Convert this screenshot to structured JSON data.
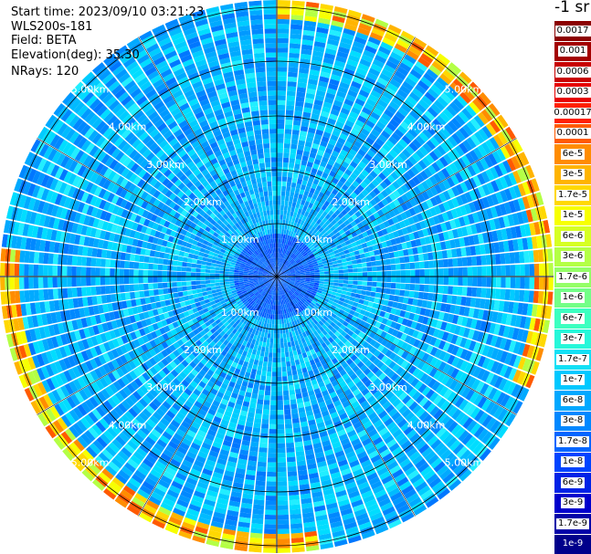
{
  "header": {
    "start_time": "Start time: 2023/09/10 03:21:23",
    "instrument": "WLS200s-181",
    "field": "Field: BETA",
    "elevation": "Elevation(deg): 35.30",
    "nrays": "NRays: 120"
  },
  "colorbar": {
    "unit_label": "-1 sr",
    "ticks": [
      "0.0017",
      "0.001",
      "0.0006",
      "0.0003",
      "0.00017",
      "0.0001",
      "6e-5",
      "3e-5",
      "1.7e-5",
      "1e-5",
      "6e-6",
      "3e-6",
      "1.7e-6",
      "1e-6",
      "6e-7",
      "3e-7",
      "1.7e-7",
      "1e-7",
      "6e-8",
      "3e-8",
      "1.7e-8",
      "1e-8",
      "6e-9",
      "3e-9",
      "1.7e-9",
      "1e-9"
    ],
    "colors": [
      "#8b0000",
      "#a30000",
      "#c80000",
      "#e60000",
      "#ff2000",
      "#ff5a00",
      "#ff8c00",
      "#ffb400",
      "#ffd800",
      "#f7ff00",
      "#d6ff24",
      "#b4ff45",
      "#94ff66",
      "#73ff87",
      "#3cffc0",
      "#26f7d9",
      "#12e0f5",
      "#00c8ff",
      "#00a8ff",
      "#0088ff",
      "#0066ff",
      "#0044ff",
      "#0022e6",
      "#0000cc",
      "#0000a8",
      "#00008b"
    ]
  },
  "chart_data": {
    "type": "ppi",
    "field": "BETA",
    "elevation_deg": 35.3,
    "n_rays": 120,
    "range_rings_km": [
      1.0,
      2.0,
      3.0,
      4.0,
      5.0
    ],
    "range_labels": [
      "1.00km",
      "2.00km",
      "3.00km",
      "4.00km",
      "5.00km"
    ],
    "max_range_km": 7.0,
    "azimuth_lines_deg": [
      0,
      30,
      60,
      90,
      120,
      150,
      180,
      210,
      240,
      270,
      300,
      330
    ],
    "colorscale": "log",
    "colorscale_range": [
      1e-09,
      0.0017
    ]
  }
}
